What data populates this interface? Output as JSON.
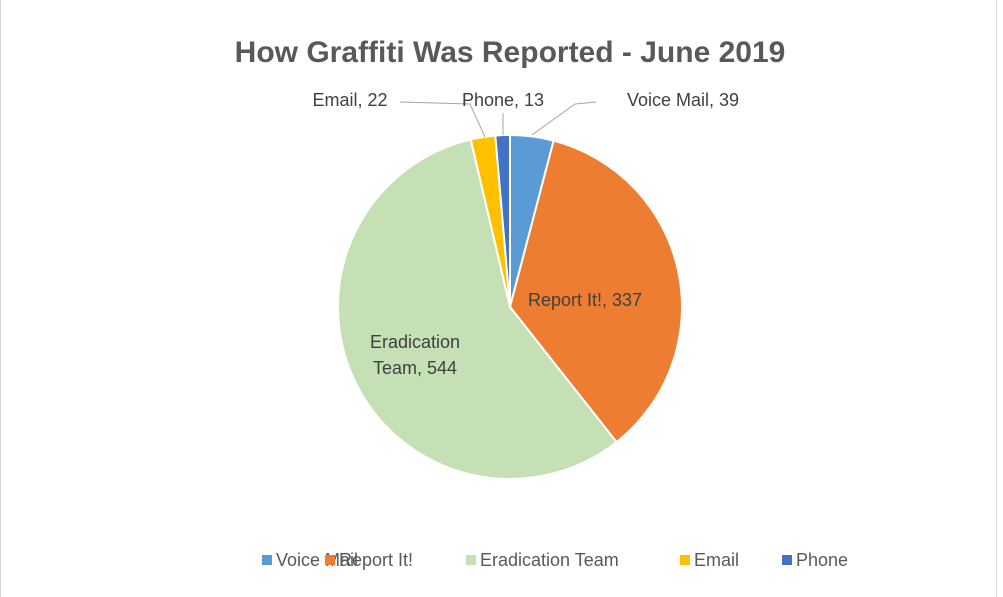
{
  "chart_data": {
    "type": "pie",
    "title": "How Graffiti Was Reported - June 2019",
    "categories": [
      "Voice Mail",
      "Report It!",
      "Eradication Team",
      "Email",
      "Phone"
    ],
    "values": [
      39,
      337,
      544,
      22,
      13
    ],
    "value_labels": [
      "Voice Mail, 39",
      "Report It!, 337",
      "Eradication Team, 544",
      "Email, 22",
      "Phone, 13"
    ],
    "colors": [
      "#5b9bd5",
      "#ed7d31",
      "#c5e0b4",
      "#ffc000",
      "#4472c4"
    ],
    "legend": "bottom"
  }
}
